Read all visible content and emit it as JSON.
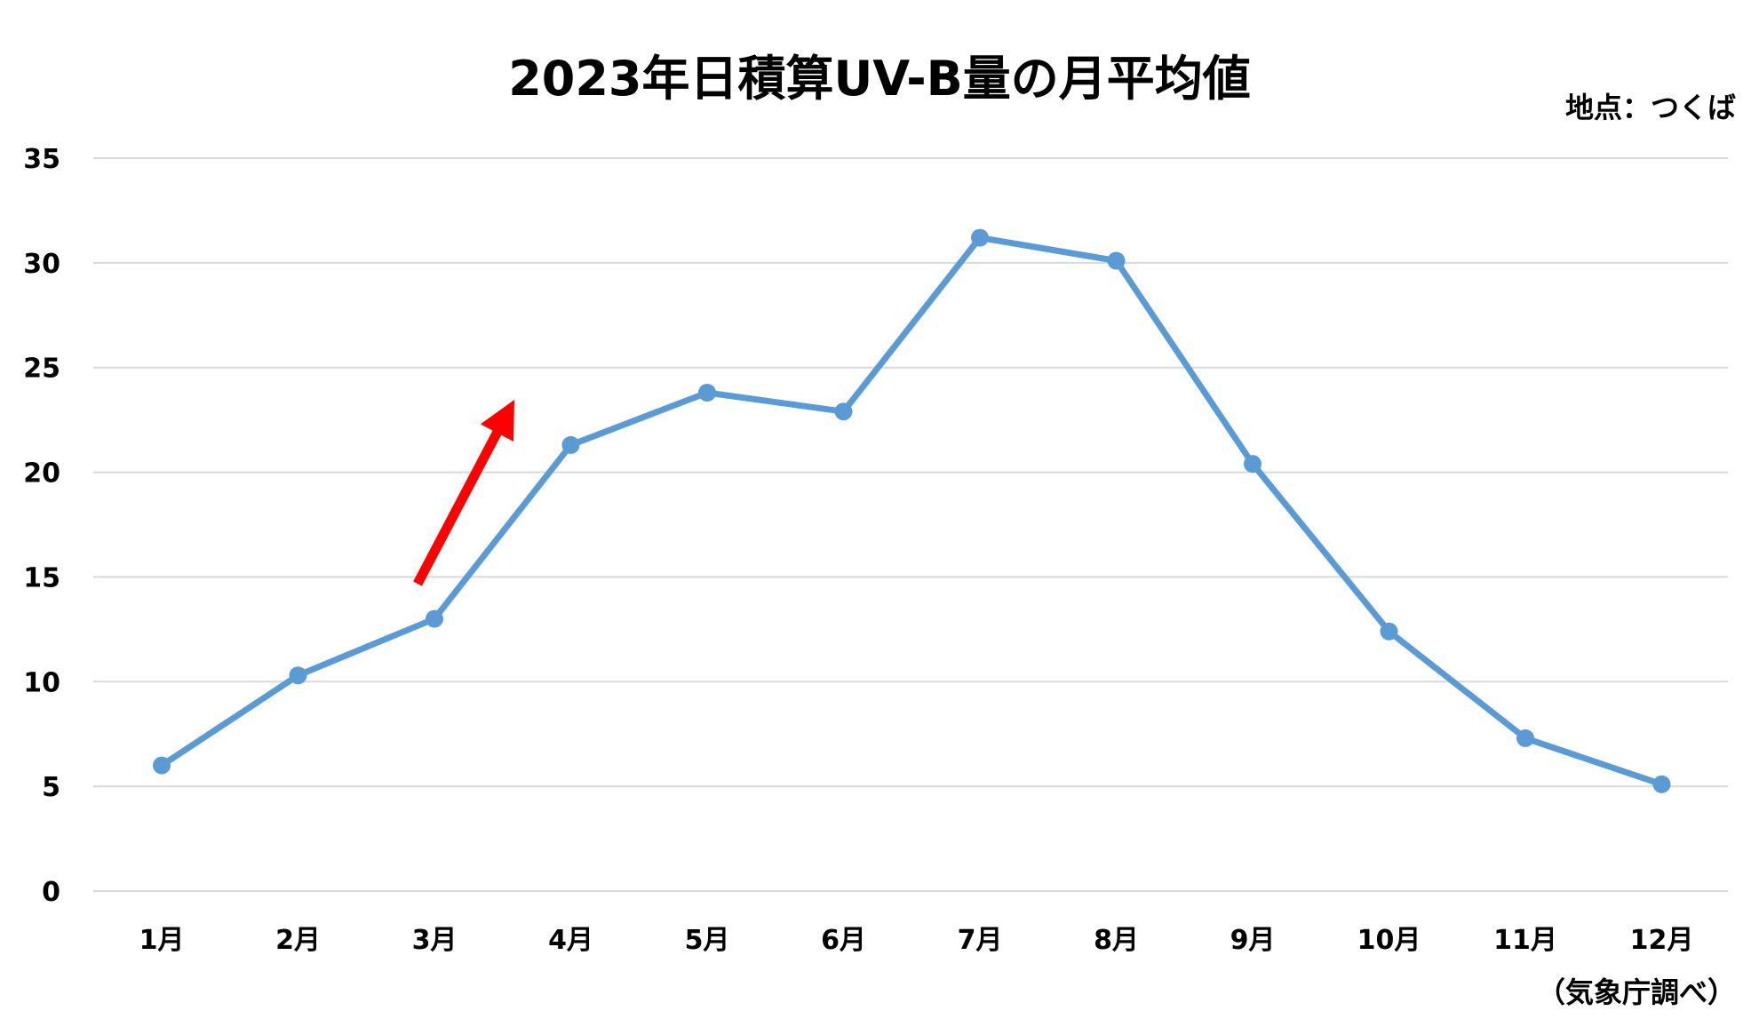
{
  "header": {
    "title": "2023年日積算UV-B量の月平均値",
    "location": "地点：つくば"
  },
  "footer": {
    "source": "（気象庁調べ）"
  },
  "colors": {
    "line": "#5b9bd5",
    "grid": "#d9d9d9",
    "arrow": "#ff0000"
  },
  "annotation": {
    "type": "arrow",
    "color": "red",
    "direction": "up-right",
    "near_category": "3月"
  },
  "chart_data": {
    "type": "line",
    "title": "2023年日積算UV-B量の月平均値",
    "xlabel": "",
    "ylabel": "",
    "categories": [
      "1月",
      "2月",
      "3月",
      "4月",
      "5月",
      "6月",
      "7月",
      "8月",
      "9月",
      "10月",
      "11月",
      "12月"
    ],
    "series": [
      {
        "values": [
          6.0,
          10.3,
          13.0,
          21.3,
          23.8,
          22.9,
          31.2,
          30.1,
          20.4,
          12.4,
          7.3,
          5.1
        ]
      }
    ],
    "ylim": [
      0,
      35
    ],
    "yticks": [
      0,
      5,
      10,
      15,
      20,
      25,
      30,
      35
    ],
    "grid": true,
    "legend": "none",
    "markers": true
  }
}
